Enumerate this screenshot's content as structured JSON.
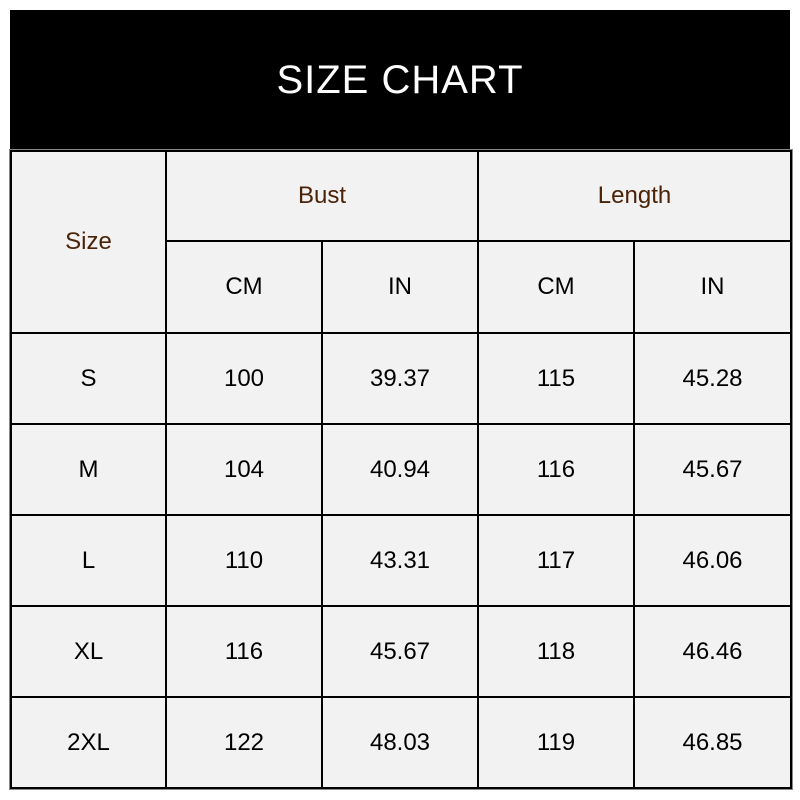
{
  "title": "SIZE CHART",
  "colors": {
    "title_bg": "#000000",
    "title_text": "#ffffff",
    "header_text": "#4a2308",
    "cell_bg": "#f2f2f2"
  },
  "headers": {
    "size": "Size",
    "bust": "Bust",
    "length": "Length",
    "bust_cm": "CM",
    "bust_in": "IN",
    "length_cm": "CM",
    "length_in": "IN"
  },
  "rows": [
    [
      "S",
      "100",
      "39.37",
      "115",
      "45.28"
    ],
    [
      "M",
      "104",
      "40.94",
      "116",
      "45.67"
    ],
    [
      "L",
      "110",
      "43.31",
      "117",
      "46.06"
    ],
    [
      "XL",
      "116",
      "45.67",
      "118",
      "46.46"
    ],
    [
      "2XL",
      "122",
      "48.03",
      "119",
      "46.85"
    ]
  ]
}
